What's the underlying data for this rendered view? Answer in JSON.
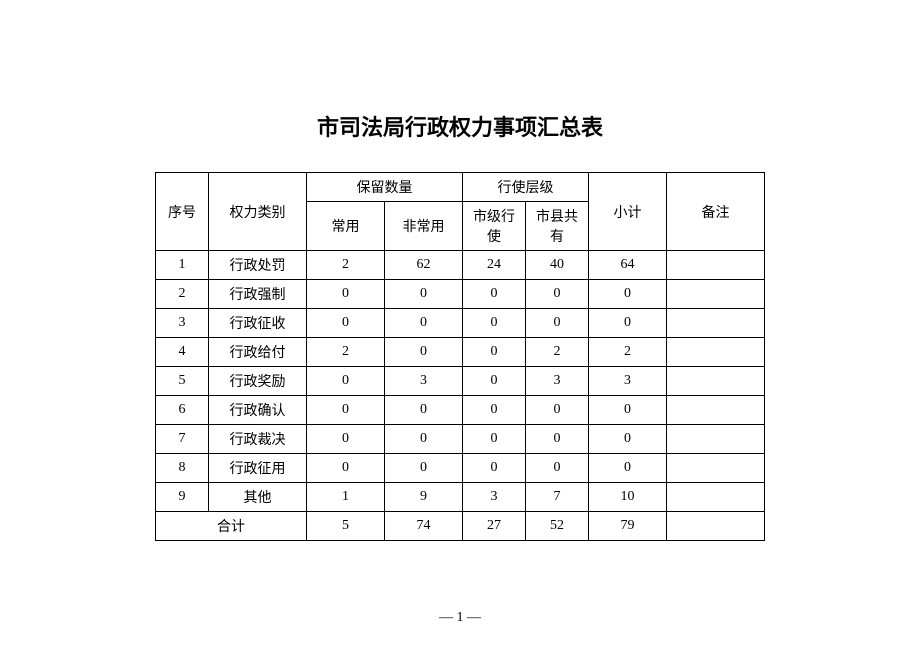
{
  "title": "市司法局行政权力事项汇总表",
  "headers": {
    "seq": "序号",
    "category": "权力类别",
    "retain_group": "保留数量",
    "retain_common": "常用",
    "retain_uncommon": "非常用",
    "level_group": "行使层级",
    "level_city": "市级行使",
    "level_shared": "市县共有",
    "subtotal": "小计",
    "note": "备注"
  },
  "rows": [
    {
      "seq": "1",
      "cat": "行政处罚",
      "c1": "2",
      "c2": "62",
      "c3": "24",
      "c4": "40",
      "sub": "64",
      "note": ""
    },
    {
      "seq": "2",
      "cat": "行政强制",
      "c1": "0",
      "c2": "0",
      "c3": "0",
      "c4": "0",
      "sub": "0",
      "note": ""
    },
    {
      "seq": "3",
      "cat": "行政征收",
      "c1": "0",
      "c2": "0",
      "c3": "0",
      "c4": "0",
      "sub": "0",
      "note": ""
    },
    {
      "seq": "4",
      "cat": "行政给付",
      "c1": "2",
      "c2": "0",
      "c3": "0",
      "c4": "2",
      "sub": "2",
      "note": ""
    },
    {
      "seq": "5",
      "cat": "行政奖励",
      "c1": "0",
      "c2": "3",
      "c3": "0",
      "c4": "3",
      "sub": "3",
      "note": ""
    },
    {
      "seq": "6",
      "cat": "行政确认",
      "c1": "0",
      "c2": "0",
      "c3": "0",
      "c4": "0",
      "sub": "0",
      "note": ""
    },
    {
      "seq": "7",
      "cat": "行政裁决",
      "c1": "0",
      "c2": "0",
      "c3": "0",
      "c4": "0",
      "sub": "0",
      "note": ""
    },
    {
      "seq": "8",
      "cat": "行政征用",
      "c1": "0",
      "c2": "0",
      "c3": "0",
      "c4": "0",
      "sub": "0",
      "note": ""
    },
    {
      "seq": "9",
      "cat": "其他",
      "c1": "1",
      "c2": "9",
      "c3": "3",
      "c4": "7",
      "sub": "10",
      "note": ""
    }
  ],
  "total": {
    "label": "合计",
    "c1": "5",
    "c2": "74",
    "c3": "27",
    "c4": "52",
    "sub": "79",
    "note": ""
  },
  "pageNumber": "— 1 —"
}
